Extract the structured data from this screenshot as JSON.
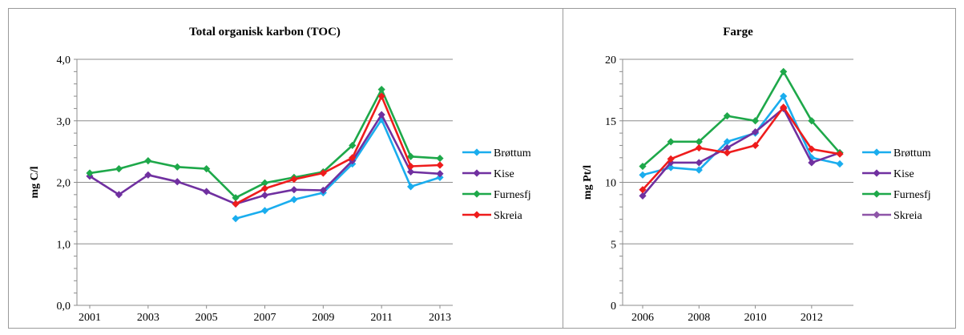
{
  "chart_data": [
    {
      "type": "line",
      "title": "Total organisk karbon (TOC)",
      "ylabel": "mg C/l",
      "xlabel": "",
      "x": [
        2001,
        2002,
        2003,
        2004,
        2005,
        2006,
        2007,
        2008,
        2009,
        2010,
        2011,
        2012,
        2013
      ],
      "x_ticks": [
        "2001",
        "2003",
        "2005",
        "2007",
        "2009",
        "2011",
        "2013"
      ],
      "ylim": [
        0,
        4
      ],
      "y_ticks": [
        "0,0",
        "1,0",
        "2,0",
        "3,0",
        "4,0"
      ],
      "grid": true,
      "legend": "right",
      "series": [
        {
          "name": "Brøttum",
          "color": "#1aadee",
          "values": [
            null,
            null,
            null,
            null,
            null,
            1.41,
            1.54,
            1.72,
            1.83,
            2.3,
            3.02,
            1.93,
            2.08
          ]
        },
        {
          "name": "Kise",
          "color": "#7030a0",
          "values": [
            2.1,
            1.8,
            2.12,
            2.01,
            1.85,
            1.65,
            1.79,
            1.88,
            1.87,
            2.35,
            3.1,
            2.17,
            2.14
          ]
        },
        {
          "name": "Furnesfj",
          "color": "#1ea84a",
          "values": [
            2.15,
            2.22,
            2.35,
            2.25,
            2.22,
            1.75,
            1.99,
            2.08,
            2.17,
            2.6,
            3.51,
            2.42,
            2.39
          ]
        },
        {
          "name": "Skreia",
          "color": "#ee1c1c",
          "values": [
            null,
            null,
            null,
            null,
            null,
            1.65,
            1.9,
            2.05,
            2.15,
            2.4,
            3.4,
            2.26,
            2.28
          ]
        }
      ]
    },
    {
      "type": "line",
      "title": "Farge",
      "ylabel": "mg Pt/l",
      "xlabel": "",
      "x": [
        2006,
        2007,
        2008,
        2009,
        2010,
        2011,
        2012,
        2013
      ],
      "x_ticks": [
        "2006",
        "2008",
        "2010",
        "2012"
      ],
      "ylim": [
        0,
        20
      ],
      "y_ticks": [
        "0",
        "5",
        "10",
        "15",
        "20"
      ],
      "grid": true,
      "legend": "right",
      "series": [
        {
          "name": "Brøttum",
          "color": "#1aadee",
          "values": [
            10.6,
            11.2,
            11.0,
            13.3,
            14.0,
            17.0,
            12.0,
            11.5
          ]
        },
        {
          "name": "Kise",
          "color": "#7030a0",
          "values": [
            8.9,
            11.6,
            11.6,
            12.8,
            14.1,
            16.0,
            11.6,
            12.4
          ]
        },
        {
          "name": "Furnesfj",
          "color": "#1ea84a",
          "values": [
            11.3,
            13.3,
            13.3,
            15.4,
            15.0,
            19.0,
            15.0,
            12.4
          ]
        },
        {
          "name": "Skreia",
          "color": "#ee1c1c",
          "values": [
            9.4,
            11.9,
            12.8,
            12.4,
            13.0,
            16.1,
            12.7,
            12.3
          ]
        }
      ],
      "legend_entries": [
        {
          "name": "Brøttum",
          "color": "#1aadee"
        },
        {
          "name": "Kise",
          "color": "#7030a0"
        },
        {
          "name": "Furnesfj",
          "color": "#1ea84a"
        },
        {
          "name": "Skreia",
          "color": "#8e55a8"
        }
      ]
    }
  ]
}
